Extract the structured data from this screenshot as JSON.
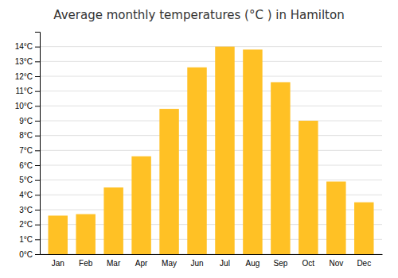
{
  "chart_data": {
    "type": "bar",
    "title": "Average monthly temperatures (°C ) in Hamilton",
    "categories": [
      "Jan",
      "Feb",
      "Mar",
      "Apr",
      "May",
      "Jun",
      "Jul",
      "Aug",
      "Sep",
      "Oct",
      "Nov",
      "Dec"
    ],
    "values": [
      2.6,
      2.7,
      4.5,
      6.6,
      9.8,
      12.6,
      14.0,
      13.8,
      11.6,
      9.0,
      4.9,
      3.5
    ],
    "color": "#FFC125",
    "ylim": [
      0,
      15
    ],
    "yticks": [
      {
        "value": 0,
        "label": "0°C"
      },
      {
        "value": 1,
        "label": "1°C"
      },
      {
        "value": 2,
        "label": "2°C"
      },
      {
        "value": 3,
        "label": "3°C"
      },
      {
        "value": 4,
        "label": "4°C"
      },
      {
        "value": 5,
        "label": "5°C"
      },
      {
        "value": 6,
        "label": "6°C"
      },
      {
        "value": 7,
        "label": "7°C"
      },
      {
        "value": 8,
        "label": "8°C"
      },
      {
        "value": 9,
        "label": "9°C"
      },
      {
        "value": 10,
        "label": "10°C"
      },
      {
        "value": 11,
        "label": "11°C"
      },
      {
        "value": 12,
        "label": "12°C"
      },
      {
        "value": 13,
        "label": "13°C"
      },
      {
        "value": 14,
        "label": "14°C"
      }
    ],
    "grid": true
  }
}
